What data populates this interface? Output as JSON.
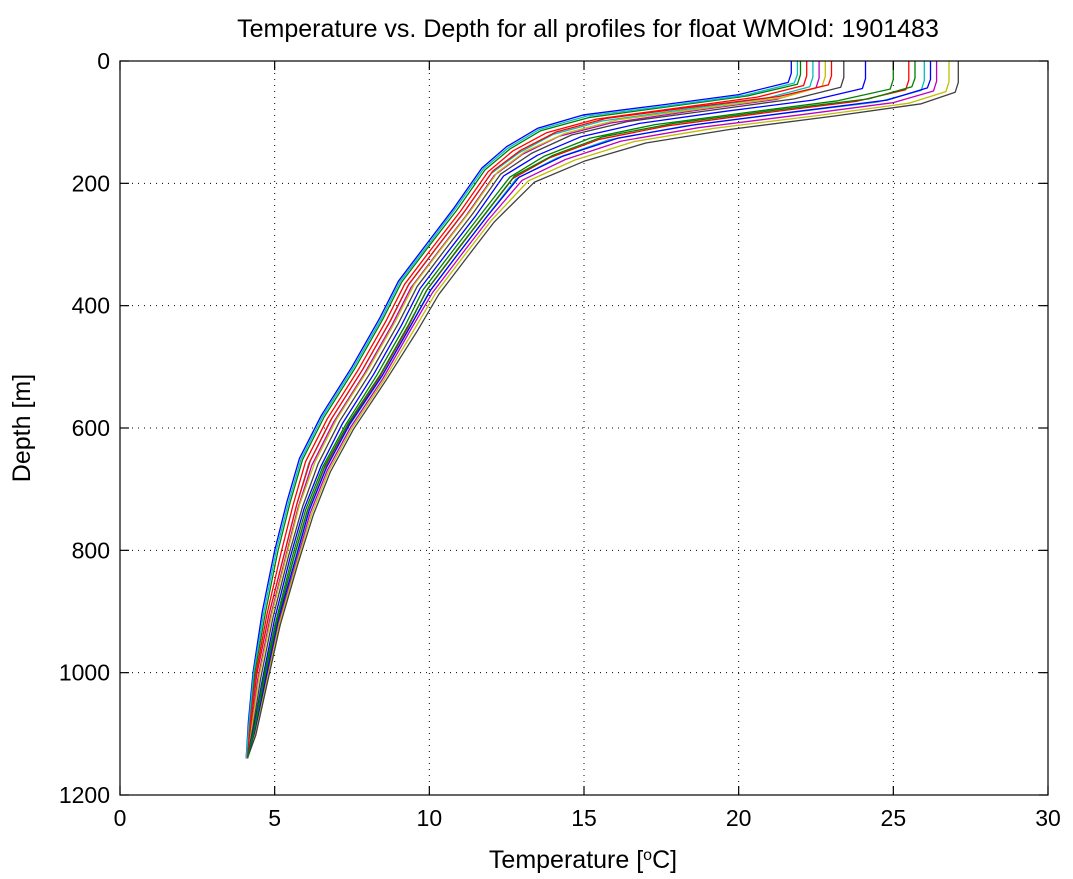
{
  "chart_data": {
    "type": "line",
    "title": "Temperature vs. Depth for all profiles for float WMOId: 1901483",
    "xlabel": "Temperature [",
    "xlabel_sup": "o",
    "xlabel_end": "C]",
    "ylabel": "Depth [m]",
    "xlim": [
      0,
      30
    ],
    "ylim": [
      0,
      1200
    ],
    "y_inverted": true,
    "grid": true,
    "legend": "none",
    "xticks": [
      "0",
      "5",
      "10",
      "15",
      "20",
      "25",
      "30"
    ],
    "yticks": [
      "0",
      "200",
      "400",
      "600",
      "800",
      "1000",
      "1200"
    ],
    "color_cycle": [
      "#0000ff",
      "#008000",
      "#ff0000",
      "#00bfbf",
      "#bf00bf",
      "#bfbf00",
      "#404040"
    ],
    "series": [
      {
        "x": [
          21.7,
          21.7,
          21.6,
          20.0,
          17.5,
          15.0,
          13.5,
          12.5,
          11.7,
          10.8,
          9.9,
          9.0,
          8.4,
          7.5,
          6.5,
          5.8,
          5.4,
          5.0,
          4.6,
          4.3,
          4.15,
          4.08
        ],
        "y": [
          0,
          20,
          35,
          55,
          72,
          88,
          110,
          140,
          175,
          240,
          300,
          360,
          420,
          500,
          580,
          650,
          720,
          800,
          900,
          1000,
          1080,
          1140
        ]
      },
      {
        "x": [
          22.0,
          22.0,
          21.9,
          20.3,
          17.7,
          15.2,
          13.6,
          12.6,
          11.8,
          10.9,
          10.0,
          9.1,
          8.5,
          7.6,
          6.6,
          5.9,
          5.5,
          5.1,
          4.7,
          4.35,
          4.18,
          4.1
        ],
        "y": [
          0,
          22,
          38,
          57,
          75,
          92,
          114,
          144,
          178,
          243,
          302,
          362,
          422,
          502,
          582,
          652,
          722,
          802,
          902,
          1002,
          1082,
          1140
        ]
      },
      {
        "x": [
          22.2,
          22.2,
          22.1,
          20.6,
          18.0,
          15.4,
          13.8,
          12.7,
          11.9,
          11.0,
          10.1,
          9.2,
          8.6,
          7.7,
          6.7,
          6.0,
          5.6,
          5.2,
          4.75,
          4.38,
          4.2,
          4.1
        ],
        "y": [
          0,
          24,
          40,
          59,
          77,
          95,
          117,
          147,
          181,
          246,
          305,
          365,
          425,
          505,
          585,
          655,
          725,
          805,
          905,
          1005,
          1085,
          1140
        ]
      },
      {
        "x": [
          22.4,
          22.4,
          22.3,
          20.9,
          18.3,
          15.6,
          14.0,
          12.9,
          12.0,
          11.1,
          10.2,
          9.3,
          8.7,
          7.8,
          6.8,
          6.1,
          5.7,
          5.3,
          4.8,
          4.4,
          4.22,
          4.1
        ],
        "y": [
          0,
          26,
          42,
          61,
          79,
          98,
          120,
          150,
          184,
          249,
          308,
          368,
          428,
          508,
          588,
          658,
          728,
          808,
          908,
          1008,
          1088,
          1140
        ]
      },
      {
        "x": [
          22.6,
          22.6,
          22.5,
          21.2,
          18.6,
          15.9,
          14.2,
          13.0,
          12.1,
          11.2,
          10.3,
          9.4,
          8.8,
          7.9,
          6.9,
          6.2,
          5.75,
          5.35,
          4.85,
          4.45,
          4.25,
          4.12
        ],
        "y": [
          0,
          28,
          44,
          63,
          81,
          101,
          123,
          153,
          187,
          252,
          311,
          371,
          431,
          511,
          591,
          661,
          731,
          811,
          911,
          1011,
          1091,
          1140
        ]
      },
      {
        "x": [
          22.8,
          22.8,
          22.7,
          21.4,
          18.8,
          16.1,
          14.4,
          13.1,
          12.2,
          11.3,
          10.4,
          9.5,
          8.9,
          8.0,
          7.0,
          6.3,
          5.8,
          5.4,
          4.9,
          4.5,
          4.27,
          4.12
        ],
        "y": [
          0,
          25,
          41,
          60,
          78,
          96,
          118,
          148,
          182,
          247,
          306,
          366,
          426,
          506,
          586,
          656,
          726,
          806,
          906,
          1006,
          1086,
          1140
        ]
      },
      {
        "x": [
          23.4,
          23.4,
          23.3,
          21.8,
          19.2,
          16.4,
          14.6,
          13.3,
          12.3,
          11.4,
          10.5,
          9.6,
          9.0,
          8.1,
          7.1,
          6.4,
          5.9,
          5.45,
          4.95,
          4.55,
          4.3,
          4.12
        ],
        "y": [
          0,
          27,
          43,
          62,
          80,
          99,
          121,
          151,
          185,
          250,
          309,
          369,
          429,
          509,
          589,
          659,
          729,
          809,
          909,
          1009,
          1089,
          1140
        ]
      },
      {
        "x": [
          24.1,
          24.1,
          24.0,
          22.4,
          19.6,
          16.8,
          14.9,
          13.5,
          12.4,
          11.5,
          10.6,
          9.7,
          9.1,
          8.2,
          7.2,
          6.5,
          5.95,
          5.5,
          5.0,
          4.6,
          4.32,
          4.12
        ],
        "y": [
          0,
          29,
          45,
          64,
          82,
          102,
          124,
          154,
          188,
          253,
          312,
          372,
          432,
          512,
          592,
          662,
          732,
          812,
          912,
          1012,
          1092,
          1140
        ]
      },
      {
        "x": [
          25.0,
          25.0,
          24.9,
          23.2,
          20.3,
          17.3,
          15.2,
          13.7,
          12.6,
          11.6,
          10.7,
          9.8,
          9.2,
          8.3,
          7.3,
          6.55,
          6.0,
          5.55,
          5.05,
          4.62,
          4.33,
          4.12
        ],
        "y": [
          0,
          30,
          46,
          65,
          84,
          104,
          126,
          156,
          190,
          255,
          314,
          374,
          434,
          514,
          594,
          664,
          734,
          814,
          914,
          1014,
          1094,
          1140
        ]
      },
      {
        "x": [
          25.5,
          25.5,
          25.4,
          23.8,
          20.8,
          17.7,
          15.5,
          13.9,
          12.7,
          11.7,
          10.8,
          9.9,
          9.3,
          8.4,
          7.35,
          6.6,
          6.05,
          5.6,
          5.08,
          4.65,
          4.35,
          4.12
        ],
        "y": [
          0,
          31,
          47,
          66,
          85,
          106,
          128,
          158,
          192,
          257,
          316,
          376,
          436,
          516,
          596,
          666,
          736,
          816,
          916,
          1016,
          1096,
          1140
        ]
      },
      {
        "x": [
          26.0,
          26.0,
          25.9,
          24.5,
          21.4,
          18.2,
          15.8,
          14.1,
          12.8,
          11.8,
          10.9,
          10.0,
          9.35,
          8.45,
          7.4,
          6.65,
          6.1,
          5.65,
          5.1,
          4.68,
          4.36,
          4.12
        ],
        "y": [
          0,
          32,
          48,
          67,
          86,
          107,
          129,
          159,
          193,
          258,
          317,
          377,
          437,
          517,
          597,
          667,
          737,
          817,
          917,
          1017,
          1097,
          1140
        ]
      },
      {
        "x": [
          26.4,
          26.4,
          26.3,
          25.0,
          22.0,
          18.7,
          16.2,
          14.4,
          13.0,
          11.9,
          11.0,
          10.1,
          9.4,
          8.5,
          7.45,
          6.7,
          6.15,
          5.7,
          5.12,
          4.7,
          4.37,
          4.12
        ],
        "y": [
          0,
          33,
          49,
          68,
          88,
          109,
          131,
          161,
          195,
          260,
          319,
          379,
          439,
          519,
          599,
          669,
          739,
          819,
          919,
          1019,
          1099,
          1140
        ]
      },
      {
        "x": [
          26.8,
          26.8,
          26.7,
          25.5,
          22.6,
          19.2,
          16.6,
          14.7,
          13.2,
          12.0,
          11.1,
          10.2,
          9.5,
          8.55,
          7.5,
          6.75,
          6.2,
          5.72,
          5.15,
          4.72,
          4.38,
          4.12
        ],
        "y": [
          0,
          34,
          50,
          69,
          89,
          110,
          132,
          162,
          196,
          261,
          320,
          380,
          440,
          520,
          600,
          670,
          740,
          820,
          920,
          1020,
          1100,
          1140
        ]
      },
      {
        "x": [
          27.1,
          27.1,
          27.0,
          25.9,
          23.1,
          19.7,
          17.0,
          15.0,
          13.4,
          12.1,
          11.2,
          10.3,
          9.6,
          8.6,
          7.55,
          6.8,
          6.25,
          5.75,
          5.18,
          4.74,
          4.39,
          4.12
        ],
        "y": [
          0,
          35,
          51,
          70,
          90,
          112,
          134,
          164,
          198,
          263,
          322,
          382,
          442,
          522,
          602,
          672,
          742,
          822,
          922,
          1022,
          1102,
          1140
        ]
      },
      {
        "x": [
          26.2,
          26.2,
          26.1,
          24.8,
          21.8,
          18.6,
          16.1,
          14.3,
          12.9,
          11.85,
          10.95,
          10.05,
          9.38,
          8.48,
          7.42,
          6.68,
          6.12,
          5.68,
          5.11,
          4.69,
          4.36,
          4.12
        ],
        "y": [
          0,
          30,
          44,
          64,
          83,
          104,
          126,
          156,
          190,
          255,
          314,
          374,
          434,
          514,
          594,
          664,
          734,
          814,
          914,
          1014,
          1094,
          1140
        ]
      },
      {
        "x": [
          25.7,
          25.7,
          25.6,
          24.2,
          21.1,
          17.9,
          15.6,
          14.0,
          12.75,
          11.75,
          10.85,
          9.95,
          9.32,
          8.42,
          7.38,
          6.62,
          6.08,
          5.62,
          5.09,
          4.66,
          4.35,
          4.12
        ],
        "y": [
          0,
          28,
          42,
          62,
          81,
          102,
          124,
          154,
          188,
          253,
          312,
          372,
          432,
          512,
          592,
          662,
          732,
          812,
          912,
          1012,
          1092,
          1140
        ]
      },
      {
        "x": [
          23.0,
          23.0,
          22.9,
          21.3,
          18.4,
          15.7,
          14.1,
          12.95,
          12.05,
          11.15,
          10.25,
          9.35,
          8.75,
          7.85,
          6.85,
          6.15,
          5.72,
          5.32,
          4.82,
          4.42,
          4.23,
          4.1
        ],
        "y": [
          0,
          24,
          39,
          58,
          76,
          94,
          116,
          146,
          180,
          245,
          304,
          364,
          424,
          504,
          584,
          654,
          724,
          804,
          904,
          1004,
          1084,
          1140
        ]
      },
      {
        "x": [
          21.9,
          21.9,
          21.8,
          20.2,
          17.6,
          15.1,
          13.55,
          12.55,
          11.75,
          10.85,
          9.95,
          9.05,
          8.45,
          7.55,
          6.55,
          5.85,
          5.45,
          5.05,
          4.65,
          4.32,
          4.17,
          4.08
        ],
        "y": [
          0,
          22,
          36,
          56,
          74,
          90,
          112,
          142,
          176,
          241,
          301,
          361,
          421,
          501,
          581,
          651,
          721,
          801,
          901,
          1001,
          1081,
          1140
        ]
      }
    ]
  }
}
